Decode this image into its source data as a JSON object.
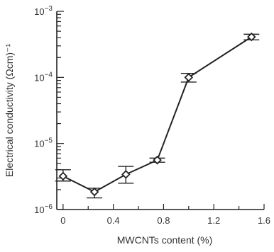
{
  "chart_data": {
    "type": "line",
    "xlabel": "MWCNTs content (%)",
    "ylabel": "Electrical conductivity (Ωcm)⁻¹",
    "xscale": "linear",
    "yscale": "log",
    "xlim": [
      -0.05,
      1.6
    ],
    "ylim": [
      1e-06,
      0.001
    ],
    "x_ticks": [
      0,
      0.4,
      0.8,
      1.2,
      1.6
    ],
    "x_tick_labels": [
      "0",
      "0.4",
      "0.8",
      "1.2",
      "1.6"
    ],
    "y_ticks": [
      1e-06,
      1e-05,
      0.0001,
      0.001
    ],
    "y_tick_labels": [
      {
        "base": "10",
        "exp": "−6"
      },
      {
        "base": "10",
        "exp": "−5"
      },
      {
        "base": "10",
        "exp": "−4"
      },
      {
        "base": "10",
        "exp": "−3"
      }
    ],
    "series": [
      {
        "marker": "diamond",
        "points": [
          {
            "x": 0,
            "y": 3.2e-06,
            "err_low": 2.7e-06,
            "err_high": 4e-06
          },
          {
            "x": 0.25,
            "y": 1.85e-06,
            "err_low": 1.5e-06,
            "err_high": 2.1e-06
          },
          {
            "x": 0.5,
            "y": 3.4e-06,
            "err_low": 2.5e-06,
            "err_high": 4.5e-06
          },
          {
            "x": 0.75,
            "y": 5.6e-06,
            "err_low": 5.2e-06,
            "err_high": 6e-06
          },
          {
            "x": 1.0,
            "y": 0.0001,
            "err_low": 8.5e-05,
            "err_high": 0.000115
          },
          {
            "x": 1.5,
            "y": 0.00041,
            "err_low": 0.00037,
            "err_high": 0.00045
          }
        ]
      }
    ],
    "grid": false
  }
}
